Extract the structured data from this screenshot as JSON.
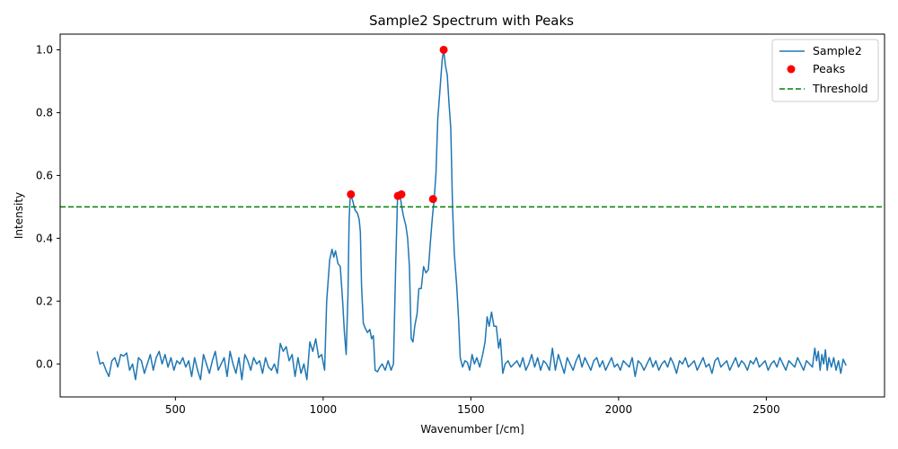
{
  "chart_data": {
    "type": "line",
    "title": "Sample2 Spectrum with Peaks",
    "xlabel": "Wavenumber [/cm]",
    "ylabel": "Intensity",
    "xlim": [
      110,
      2900
    ],
    "ylim": [
      -0.105,
      1.05
    ],
    "xticks": [
      500,
      1000,
      1500,
      2000,
      2500
    ],
    "yticks": [
      0.0,
      0.2,
      0.4,
      0.6,
      0.8,
      1.0
    ],
    "xtick_labels": [
      "500",
      "1000",
      "1500",
      "2000",
      "2500"
    ],
    "ytick_labels": [
      "0.0",
      "0.2",
      "0.4",
      "0.6",
      "0.8",
      "1.0"
    ],
    "grid": false,
    "legend_position": "top-right",
    "series": [
      {
        "name": "Sample2",
        "kind": "line",
        "color": "#1f77b4",
        "points": [
          [
            235,
            0.04
          ],
          [
            245,
            0.0
          ],
          [
            255,
            0.005
          ],
          [
            265,
            -0.02
          ],
          [
            275,
            -0.04
          ],
          [
            285,
            0.01
          ],
          [
            295,
            0.02
          ],
          [
            305,
            -0.01
          ],
          [
            315,
            0.03
          ],
          [
            325,
            0.025
          ],
          [
            335,
            0.035
          ],
          [
            345,
            -0.02
          ],
          [
            355,
            0.0
          ],
          [
            365,
            -0.05
          ],
          [
            375,
            0.02
          ],
          [
            385,
            0.01
          ],
          [
            395,
            -0.03
          ],
          [
            405,
            0.0
          ],
          [
            415,
            0.03
          ],
          [
            425,
            -0.02
          ],
          [
            435,
            0.02
          ],
          [
            445,
            0.04
          ],
          [
            455,
            0.0
          ],
          [
            465,
            0.03
          ],
          [
            475,
            -0.01
          ],
          [
            485,
            0.02
          ],
          [
            495,
            -0.02
          ],
          [
            505,
            0.01
          ],
          [
            515,
            0.0
          ],
          [
            525,
            0.02
          ],
          [
            535,
            -0.01
          ],
          [
            545,
            0.01
          ],
          [
            555,
            -0.04
          ],
          [
            565,
            0.02
          ],
          [
            575,
            -0.02
          ],
          [
            585,
            -0.05
          ],
          [
            595,
            0.03
          ],
          [
            605,
            0.0
          ],
          [
            615,
            -0.03
          ],
          [
            625,
            0.01
          ],
          [
            635,
            0.04
          ],
          [
            645,
            -0.02
          ],
          [
            655,
            0.0
          ],
          [
            665,
            0.02
          ],
          [
            675,
            -0.04
          ],
          [
            685,
            0.04
          ],
          [
            695,
            0.0
          ],
          [
            705,
            -0.03
          ],
          [
            715,
            0.02
          ],
          [
            725,
            -0.05
          ],
          [
            735,
            0.03
          ],
          [
            745,
            0.01
          ],
          [
            755,
            -0.02
          ],
          [
            765,
            0.02
          ],
          [
            775,
            0.0
          ],
          [
            785,
            0.01
          ],
          [
            795,
            -0.03
          ],
          [
            805,
            0.02
          ],
          [
            815,
            -0.01
          ],
          [
            825,
            -0.02
          ],
          [
            835,
            0.0
          ],
          [
            845,
            -0.03
          ],
          [
            855,
            0.065
          ],
          [
            865,
            0.04
          ],
          [
            875,
            0.055
          ],
          [
            885,
            0.01
          ],
          [
            895,
            0.03
          ],
          [
            905,
            -0.04
          ],
          [
            915,
            0.02
          ],
          [
            925,
            -0.03
          ],
          [
            935,
            0.0
          ],
          [
            945,
            -0.05
          ],
          [
            955,
            0.07
          ],
          [
            965,
            0.04
          ],
          [
            975,
            0.08
          ],
          [
            985,
            0.02
          ],
          [
            995,
            0.03
          ],
          [
            1005,
            -0.02
          ],
          [
            1012,
            0.2
          ],
          [
            1022,
            0.33
          ],
          [
            1030,
            0.365
          ],
          [
            1036,
            0.34
          ],
          [
            1042,
            0.36
          ],
          [
            1050,
            0.32
          ],
          [
            1058,
            0.31
          ],
          [
            1066,
            0.2
          ],
          [
            1072,
            0.1
          ],
          [
            1078,
            0.03
          ],
          [
            1084,
            0.22
          ],
          [
            1088,
            0.46
          ],
          [
            1092,
            0.54
          ],
          [
            1100,
            0.52
          ],
          [
            1108,
            0.49
          ],
          [
            1116,
            0.48
          ],
          [
            1122,
            0.46
          ],
          [
            1126,
            0.42
          ],
          [
            1130,
            0.25
          ],
          [
            1136,
            0.13
          ],
          [
            1142,
            0.115
          ],
          [
            1150,
            0.1
          ],
          [
            1158,
            0.11
          ],
          [
            1164,
            0.08
          ],
          [
            1170,
            0.09
          ],
          [
            1176,
            -0.02
          ],
          [
            1184,
            -0.025
          ],
          [
            1192,
            -0.01
          ],
          [
            1200,
            0.0
          ],
          [
            1210,
            -0.02
          ],
          [
            1220,
            0.01
          ],
          [
            1230,
            -0.02
          ],
          [
            1238,
            0.0
          ],
          [
            1246,
            0.33
          ],
          [
            1252,
            0.535
          ],
          [
            1260,
            0.54
          ],
          [
            1266,
            0.5
          ],
          [
            1272,
            0.47
          ],
          [
            1280,
            0.44
          ],
          [
            1286,
            0.4
          ],
          [
            1292,
            0.31
          ],
          [
            1298,
            0.08
          ],
          [
            1304,
            0.07
          ],
          [
            1310,
            0.12
          ],
          [
            1318,
            0.16
          ],
          [
            1324,
            0.24
          ],
          [
            1332,
            0.24
          ],
          [
            1340,
            0.31
          ],
          [
            1348,
            0.29
          ],
          [
            1356,
            0.3
          ],
          [
            1364,
            0.4
          ],
          [
            1370,
            0.47
          ],
          [
            1376,
            0.525
          ],
          [
            1382,
            0.61
          ],
          [
            1388,
            0.78
          ],
          [
            1396,
            0.88
          ],
          [
            1403,
            0.97
          ],
          [
            1408,
            1.0
          ],
          [
            1414,
            0.95
          ],
          [
            1420,
            0.92
          ],
          [
            1426,
            0.83
          ],
          [
            1432,
            0.75
          ],
          [
            1438,
            0.5
          ],
          [
            1444,
            0.35
          ],
          [
            1452,
            0.25
          ],
          [
            1458,
            0.15
          ],
          [
            1464,
            0.02
          ],
          [
            1472,
            -0.01
          ],
          [
            1480,
            0.01
          ],
          [
            1488,
            0.005
          ],
          [
            1496,
            -0.02
          ],
          [
            1504,
            0.03
          ],
          [
            1512,
            0.0
          ],
          [
            1520,
            0.02
          ],
          [
            1530,
            -0.01
          ],
          [
            1540,
            0.03
          ],
          [
            1548,
            0.07
          ],
          [
            1555,
            0.15
          ],
          [
            1562,
            0.12
          ],
          [
            1570,
            0.165
          ],
          [
            1578,
            0.12
          ],
          [
            1586,
            0.12
          ],
          [
            1594,
            0.05
          ],
          [
            1600,
            0.08
          ],
          [
            1608,
            -0.03
          ],
          [
            1616,
            0.0
          ],
          [
            1626,
            0.01
          ],
          [
            1636,
            -0.01
          ],
          [
            1646,
            0.0
          ],
          [
            1656,
            0.01
          ],
          [
            1666,
            -0.01
          ],
          [
            1676,
            0.02
          ],
          [
            1686,
            -0.02
          ],
          [
            1696,
            0.0
          ],
          [
            1706,
            0.03
          ],
          [
            1716,
            -0.01
          ],
          [
            1726,
            0.02
          ],
          [
            1736,
            -0.02
          ],
          [
            1746,
            0.01
          ],
          [
            1756,
            0.0
          ],
          [
            1766,
            -0.02
          ],
          [
            1776,
            0.05
          ],
          [
            1786,
            -0.02
          ],
          [
            1796,
            0.03
          ],
          [
            1806,
            0.0
          ],
          [
            1816,
            -0.03
          ],
          [
            1826,
            0.02
          ],
          [
            1836,
            0.0
          ],
          [
            1846,
            -0.02
          ],
          [
            1856,
            0.01
          ],
          [
            1866,
            0.03
          ],
          [
            1876,
            -0.01
          ],
          [
            1886,
            0.02
          ],
          [
            1896,
            0.0
          ],
          [
            1906,
            -0.02
          ],
          [
            1916,
            0.01
          ],
          [
            1926,
            0.02
          ],
          [
            1936,
            -0.01
          ],
          [
            1946,
            0.01
          ],
          [
            1956,
            -0.02
          ],
          [
            1966,
            0.0
          ],
          [
            1976,
            0.02
          ],
          [
            1986,
            -0.01
          ],
          [
            1996,
            0.0
          ],
          [
            2006,
            -0.02
          ],
          [
            2016,
            0.01
          ],
          [
            2026,
            0.0
          ],
          [
            2036,
            -0.01
          ],
          [
            2046,
            0.02
          ],
          [
            2056,
            -0.04
          ],
          [
            2066,
            0.01
          ],
          [
            2076,
            0.0
          ],
          [
            2086,
            -0.02
          ],
          [
            2096,
            0.0
          ],
          [
            2106,
            0.02
          ],
          [
            2116,
            -0.01
          ],
          [
            2126,
            0.01
          ],
          [
            2136,
            -0.02
          ],
          [
            2146,
            0.0
          ],
          [
            2156,
            0.01
          ],
          [
            2166,
            -0.01
          ],
          [
            2176,
            0.02
          ],
          [
            2186,
            0.0
          ],
          [
            2196,
            -0.03
          ],
          [
            2206,
            0.01
          ],
          [
            2216,
            0.0
          ],
          [
            2226,
            0.02
          ],
          [
            2236,
            -0.01
          ],
          [
            2246,
            0.0
          ],
          [
            2256,
            0.01
          ],
          [
            2266,
            -0.02
          ],
          [
            2276,
            0.0
          ],
          [
            2286,
            0.02
          ],
          [
            2296,
            -0.01
          ],
          [
            2306,
            0.0
          ],
          [
            2316,
            -0.03
          ],
          [
            2326,
            0.01
          ],
          [
            2336,
            0.02
          ],
          [
            2346,
            -0.01
          ],
          [
            2356,
            0.0
          ],
          [
            2366,
            0.01
          ],
          [
            2376,
            -0.02
          ],
          [
            2386,
            0.0
          ],
          [
            2396,
            0.02
          ],
          [
            2406,
            -0.01
          ],
          [
            2416,
            0.01
          ],
          [
            2426,
            0.0
          ],
          [
            2436,
            -0.02
          ],
          [
            2446,
            0.01
          ],
          [
            2456,
            0.0
          ],
          [
            2466,
            0.02
          ],
          [
            2476,
            -0.01
          ],
          [
            2486,
            0.0
          ],
          [
            2496,
            0.01
          ],
          [
            2506,
            -0.02
          ],
          [
            2516,
            0.0
          ],
          [
            2526,
            0.01
          ],
          [
            2536,
            -0.01
          ],
          [
            2546,
            0.02
          ],
          [
            2556,
            0.0
          ],
          [
            2566,
            -0.02
          ],
          [
            2576,
            0.01
          ],
          [
            2586,
            0.0
          ],
          [
            2596,
            -0.01
          ],
          [
            2606,
            0.02
          ],
          [
            2616,
            0.0
          ],
          [
            2626,
            -0.02
          ],
          [
            2636,
            0.01
          ],
          [
            2646,
            0.0
          ],
          [
            2656,
            -0.01
          ],
          [
            2664,
            0.05
          ],
          [
            2670,
            0.01
          ],
          [
            2676,
            0.04
          ],
          [
            2682,
            -0.02
          ],
          [
            2688,
            0.03
          ],
          [
            2694,
            0.0
          ],
          [
            2700,
            0.045
          ],
          [
            2706,
            -0.02
          ],
          [
            2712,
            0.02
          ],
          [
            2720,
            -0.01
          ],
          [
            2728,
            0.02
          ],
          [
            2736,
            -0.02
          ],
          [
            2744,
            0.01
          ],
          [
            2752,
            -0.03
          ],
          [
            2760,
            0.015
          ],
          [
            2770,
            -0.005
          ]
        ]
      },
      {
        "name": "Peaks",
        "kind": "scatter",
        "color": "#ff0000",
        "points": [
          [
            1094,
            0.54
          ],
          [
            1253,
            0.535
          ],
          [
            1265,
            0.54
          ],
          [
            1372,
            0.525
          ],
          [
            1408,
            1.0
          ]
        ]
      },
      {
        "name": "Threshold",
        "kind": "hline",
        "color": "#008000",
        "y": 0.5
      }
    ],
    "legend": [
      "Sample2",
      "Peaks",
      "Threshold"
    ]
  }
}
